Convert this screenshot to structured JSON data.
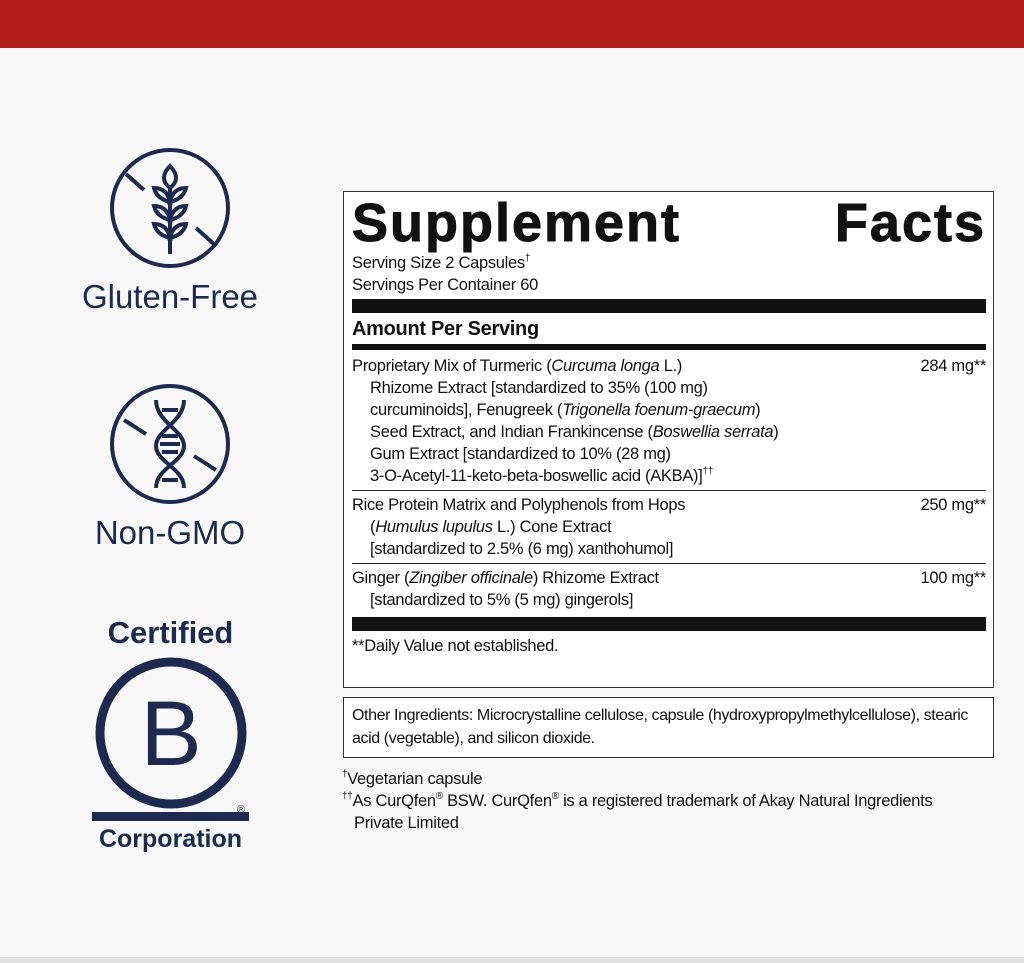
{
  "colors": {
    "topbar": "#b1201f",
    "navy": "#1b2a4e"
  },
  "badges": [
    {
      "icon": "wheat-crossed-icon",
      "label": "Gluten-Free"
    },
    {
      "icon": "dna-crossed-icon",
      "label": "Non-GMO"
    }
  ],
  "bcorp": {
    "top": "Certified",
    "letter": "B",
    "bottom": "Corporation",
    "mark": "®"
  },
  "facts": {
    "title_word1": "Supplement",
    "title_word2": "Facts",
    "serving_size": "Serving Size 2 Capsules",
    "serving_size_mark": "†",
    "servings_per_container": "Servings Per Container 60",
    "amount_header": "Amount Per Serving",
    "rows": [
      {
        "lines": [
          [
            "Proprietary Mix of Turmeric (",
            "Curcuma longa",
            " L.)"
          ],
          [
            "Rhizome Extract [standardized to 35% (100 mg)",
            "",
            ""
          ],
          [
            "curcuminoids], Fenugreek (",
            "Trigonella foenum-graecum",
            ")"
          ],
          [
            "Seed Extract, and Indian Frankincense (",
            "Boswellia serrata",
            ")"
          ],
          [
            "Gum Extract [standardized to 10% (28 mg)",
            "",
            ""
          ],
          [
            "3-O-Acetyl-11-keto-beta-boswellic acid (AKBA)]",
            "",
            ""
          ]
        ],
        "mark": "††",
        "amount": "284 mg**"
      },
      {
        "lines": [
          [
            "Rice Protein Matrix and Polyphenols from Hops",
            "",
            ""
          ],
          [
            "(",
            "Humulus lupulus",
            " L.) Cone Extract"
          ],
          [
            "[standardized to 2.5% (6 mg) xanthohumol]",
            "",
            ""
          ]
        ],
        "amount": "250 mg**"
      },
      {
        "lines": [
          [
            "Ginger (",
            "Zingiber officinale",
            ") Rhizome Extract"
          ],
          [
            "[standardized to 5% (5 mg) gingerols]",
            "",
            ""
          ]
        ],
        "amount": "100 mg**"
      }
    ],
    "dv_note": "**Daily Value not established."
  },
  "other_ingredients": "Other Ingredients: Microcrystalline cellulose, capsule (hydroxypropylmethylcellulose), stearic acid (vegetable), and silicon dioxide.",
  "footnotes": {
    "f1_mark": "†",
    "f1": "Vegetarian capsule",
    "f2_mark": "††",
    "f2_a": "As CurQfen",
    "reg": "®",
    "f2_b": " BSW. CurQfen",
    "f2_c": " is a registered trademark of Akay Natural Ingredients",
    "f2_d": "Private Limited"
  }
}
